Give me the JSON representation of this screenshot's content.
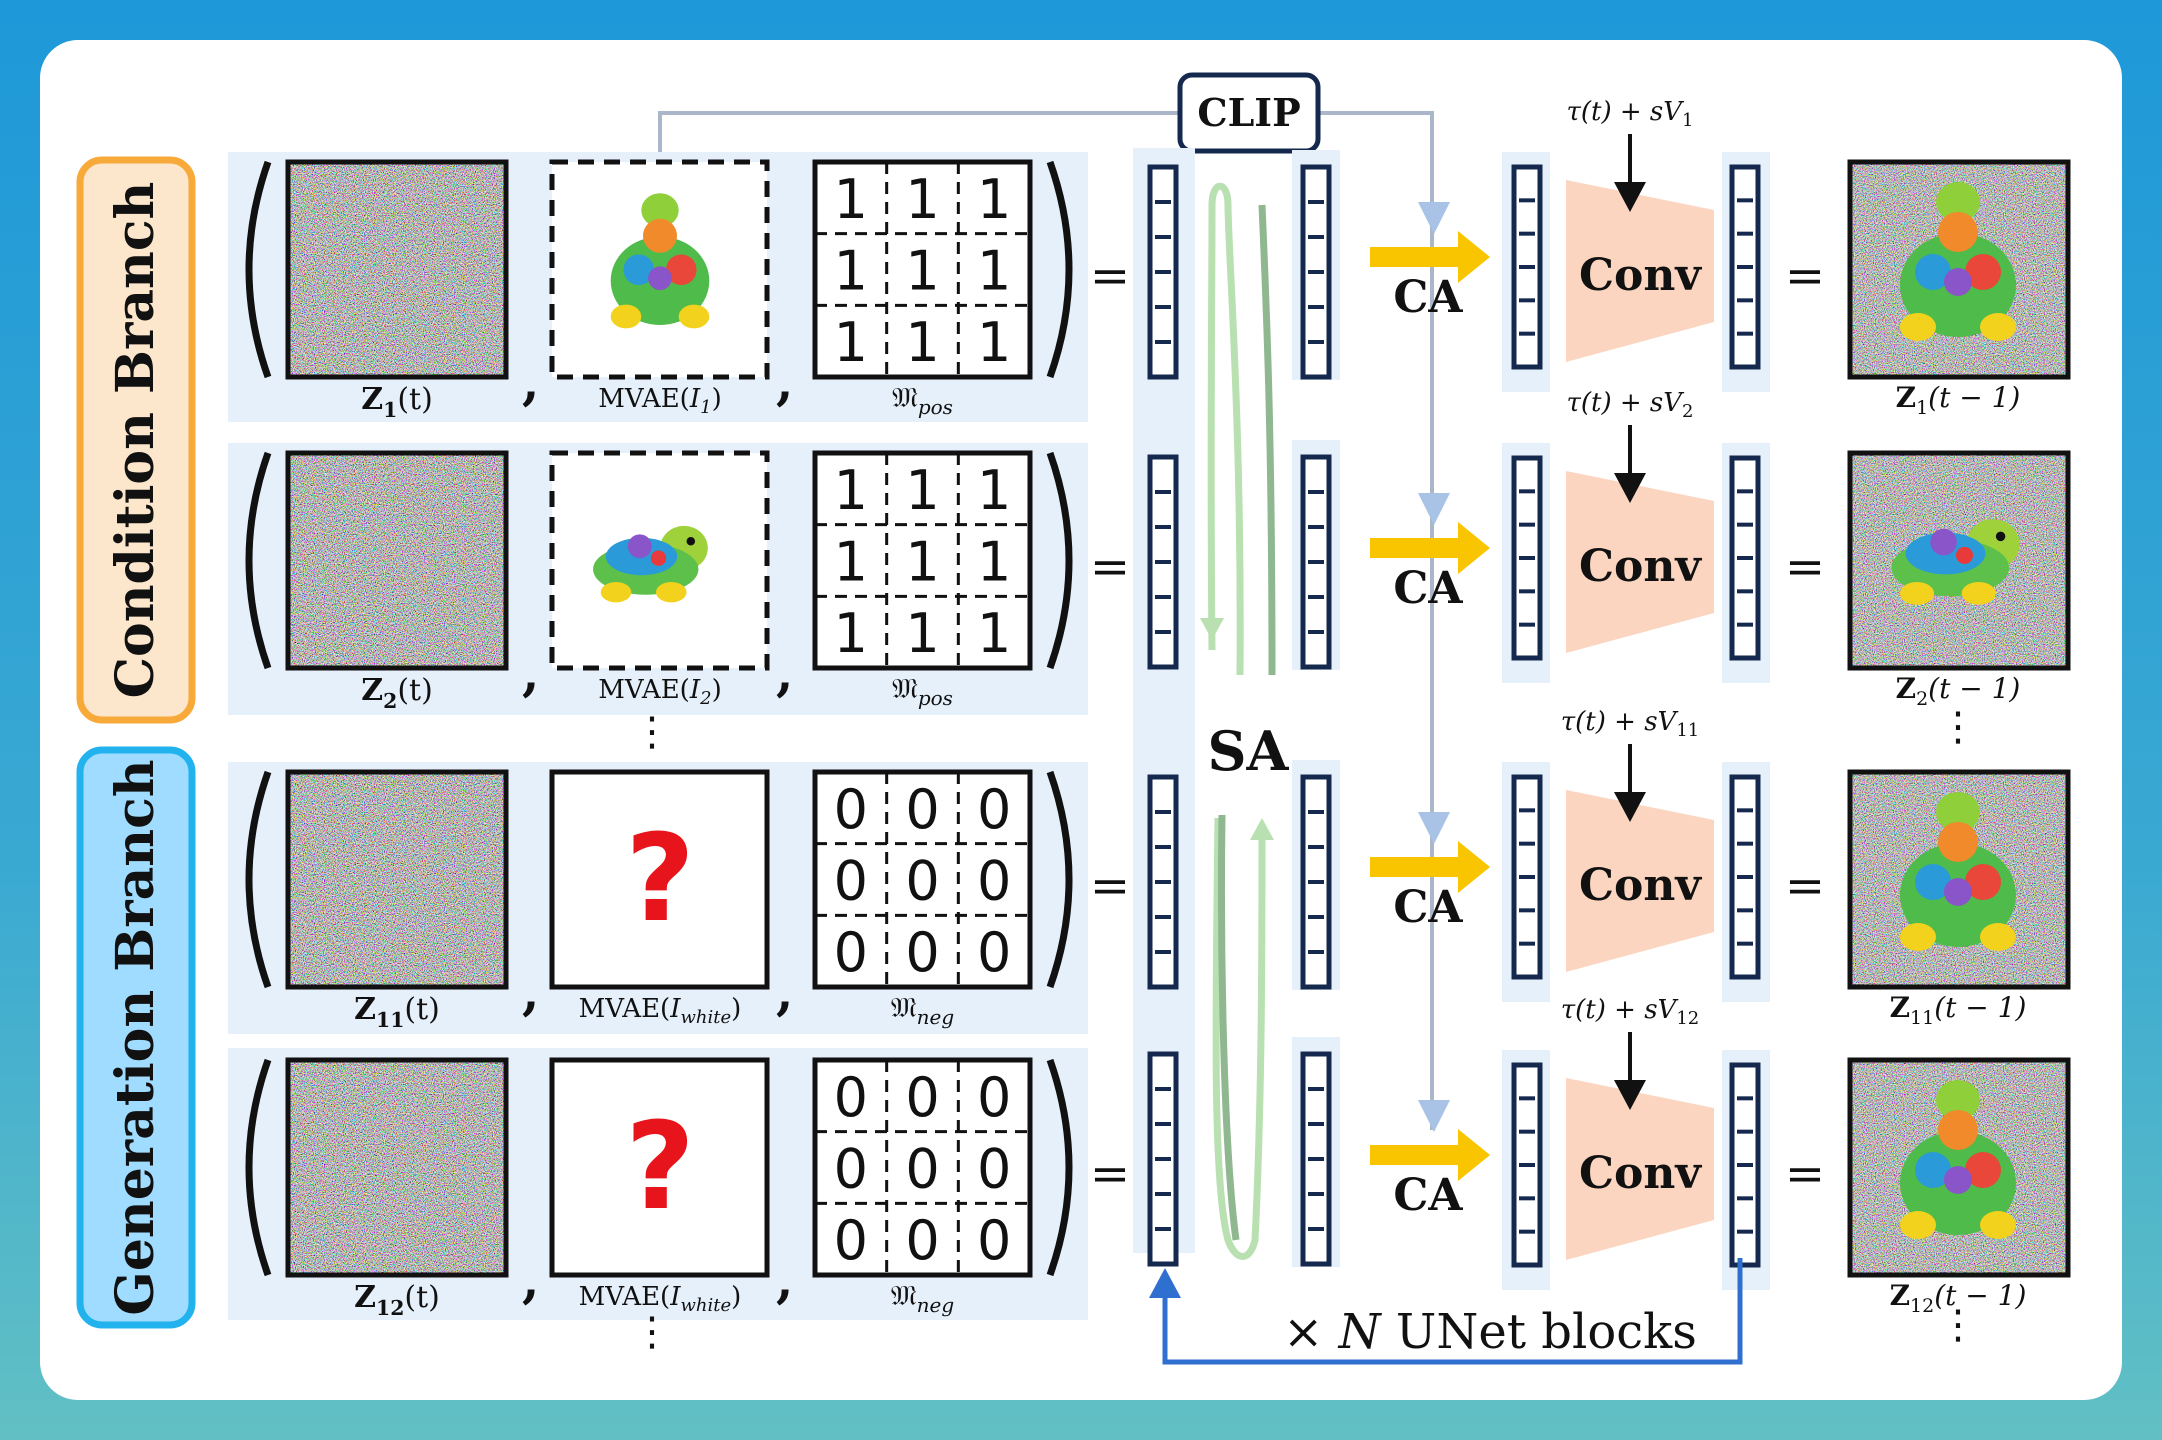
{
  "clip_label": "CLIP",
  "sa_label": "SA",
  "ca_label": "CA",
  "conv_label": "Conv",
  "equals": "=",
  "vdots": "⋮",
  "loop_label": "× N UNet blocks",
  "branches": [
    {
      "label": "Condition Branch",
      "color": "#f7a93a",
      "fill": "#fde7cc"
    },
    {
      "label": "Generation Branch",
      "color": "#22b3ef",
      "fill": "#9fdcff"
    }
  ],
  "rows": [
    {
      "z_label": "Z1(t)",
      "z_sub": "1",
      "z_tail": "(t)",
      "img_label": "MVAE(I1)",
      "img_kind": "turtle_front",
      "mask_label": "𝔐pos",
      "mask_sub": "pos",
      "mask_value": "1",
      "tau_label": "τ(t) + sV1",
      "tau_sub": "1",
      "out_label": "Z1(t − 1)",
      "out_sub": "1"
    },
    {
      "z_label": "Z2(t)",
      "z_sub": "2",
      "z_tail": "(t)",
      "img_label": "MVAE(I2)",
      "img_kind": "turtle_side",
      "mask_label": "𝔐pos",
      "mask_sub": "pos",
      "mask_value": "1",
      "tau_label": "τ(t) + sV2",
      "tau_sub": "2",
      "out_label": "Z2(t − 1)",
      "out_sub": "2"
    },
    {
      "z_label": "Z11(t)",
      "z_sub": "11",
      "z_tail": "(t)",
      "img_label": "MVAE(Iwhite)",
      "img_kind": "question",
      "mask_label": "𝔐neg",
      "mask_sub": "neg",
      "mask_value": "0",
      "tau_label": "τ(t) + sV11",
      "tau_sub": "11",
      "out_label": "Z11(t − 1)",
      "out_sub": "11"
    },
    {
      "z_label": "Z12(t)",
      "z_sub": "12",
      "z_tail": "(t)",
      "img_label": "MVAE(Iwhite)",
      "img_kind": "question",
      "mask_label": "𝔐neg",
      "mask_sub": "neg",
      "mask_value": "0",
      "tau_label": "τ(t) + sV12",
      "tau_sub": "12",
      "out_label": "Z12(t − 1)",
      "out_sub": "12"
    }
  ],
  "question_mark": "?",
  "colors": {
    "navy": "#15294f",
    "arrow_yellow": "#f9c400",
    "clip_line": "#9fb0c8",
    "conv_fill": "#fbd5c0",
    "sa_light": "#b8e0b0",
    "sa_dark": "#8fb890",
    "loop_blue": "#2f6fcf",
    "question_red": "#e8141b"
  }
}
